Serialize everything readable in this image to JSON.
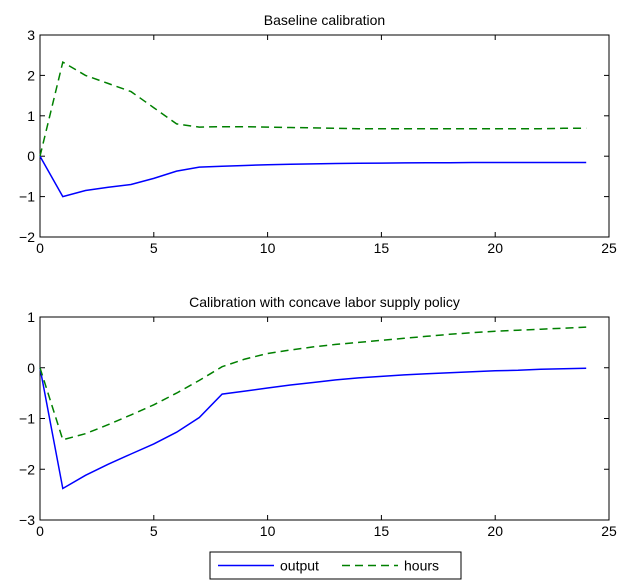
{
  "chart_data": [
    {
      "type": "line",
      "title": "Baseline calibration",
      "xlabel": "",
      "ylabel": "",
      "xlim": [
        0,
        25
      ],
      "ylim": [
        -2,
        3
      ],
      "xticks": [
        0,
        5,
        10,
        15,
        20,
        25
      ],
      "yticks": [
        -2,
        -1,
        0,
        1,
        2,
        3
      ],
      "xtick_labels": [
        "0",
        "5",
        "10",
        "15",
        "20",
        "25"
      ],
      "ytick_labels": [
        "−2",
        "−1",
        "0",
        "1",
        "2",
        "3"
      ],
      "grid": false,
      "series": [
        {
          "name": "output",
          "color": "#0000ff",
          "style": "solid",
          "x": [
            0,
            1,
            2,
            3,
            4,
            5,
            6,
            7,
            8,
            9,
            10,
            11,
            12,
            13,
            14,
            15,
            16,
            17,
            18,
            19,
            20,
            21,
            22,
            23,
            24
          ],
          "values": [
            0,
            -1.0,
            -0.85,
            -0.77,
            -0.7,
            -0.55,
            -0.37,
            -0.27,
            -0.25,
            -0.23,
            -0.21,
            -0.2,
            -0.19,
            -0.18,
            -0.175,
            -0.17,
            -0.165,
            -0.16,
            -0.16,
            -0.155,
            -0.155,
            -0.155,
            -0.155,
            -0.155,
            -0.155
          ]
        },
        {
          "name": "hours",
          "color": "#008000",
          "style": "dashed",
          "x": [
            0,
            1,
            2,
            3,
            4,
            5,
            6,
            7,
            8,
            9,
            10,
            11,
            12,
            13,
            14,
            15,
            16,
            17,
            18,
            19,
            20,
            21,
            22,
            23,
            24
          ],
          "values": [
            0,
            2.33,
            2.0,
            1.8,
            1.6,
            1.2,
            0.8,
            0.72,
            0.73,
            0.73,
            0.72,
            0.71,
            0.7,
            0.69,
            0.68,
            0.68,
            0.68,
            0.68,
            0.68,
            0.68,
            0.68,
            0.68,
            0.68,
            0.69,
            0.69
          ]
        }
      ]
    },
    {
      "type": "line",
      "title": "Calibration with concave labor supply policy",
      "xlabel": "",
      "ylabel": "",
      "xlim": [
        0,
        25
      ],
      "ylim": [
        -3,
        1
      ],
      "xticks": [
        0,
        5,
        10,
        15,
        20,
        25
      ],
      "yticks": [
        -3,
        -2,
        -1,
        0,
        1
      ],
      "xtick_labels": [
        "0",
        "5",
        "10",
        "15",
        "20",
        "25"
      ],
      "ytick_labels": [
        "−3",
        "−2",
        "−1",
        "0",
        "1"
      ],
      "grid": false,
      "series": [
        {
          "name": "output",
          "color": "#0000ff",
          "style": "solid",
          "x": [
            0,
            1,
            2,
            3,
            4,
            5,
            6,
            7,
            8,
            9,
            10,
            11,
            12,
            13,
            14,
            15,
            16,
            17,
            18,
            19,
            20,
            21,
            22,
            23,
            24
          ],
          "values": [
            0,
            -2.38,
            -2.12,
            -1.9,
            -1.7,
            -1.5,
            -1.27,
            -0.98,
            -0.52,
            -0.46,
            -0.4,
            -0.34,
            -0.29,
            -0.24,
            -0.2,
            -0.17,
            -0.14,
            -0.12,
            -0.1,
            -0.08,
            -0.06,
            -0.05,
            -0.03,
            -0.02,
            -0.01
          ]
        },
        {
          "name": "hours",
          "color": "#008000",
          "style": "dashed",
          "x": [
            0,
            1,
            2,
            3,
            4,
            5,
            6,
            7,
            8,
            9,
            10,
            11,
            12,
            13,
            14,
            15,
            16,
            17,
            18,
            19,
            20,
            21,
            22,
            23,
            24
          ],
          "values": [
            0,
            -1.42,
            -1.3,
            -1.12,
            -0.93,
            -0.73,
            -0.5,
            -0.25,
            0.02,
            0.17,
            0.28,
            0.35,
            0.41,
            0.46,
            0.5,
            0.54,
            0.58,
            0.62,
            0.66,
            0.69,
            0.72,
            0.74,
            0.76,
            0.78,
            0.8
          ]
        }
      ]
    }
  ],
  "legend": {
    "location": "bottom-center",
    "entries": [
      {
        "label": "output",
        "color": "#0000ff",
        "style": "solid"
      },
      {
        "label": "hours",
        "color": "#008000",
        "style": "dashed"
      }
    ]
  }
}
